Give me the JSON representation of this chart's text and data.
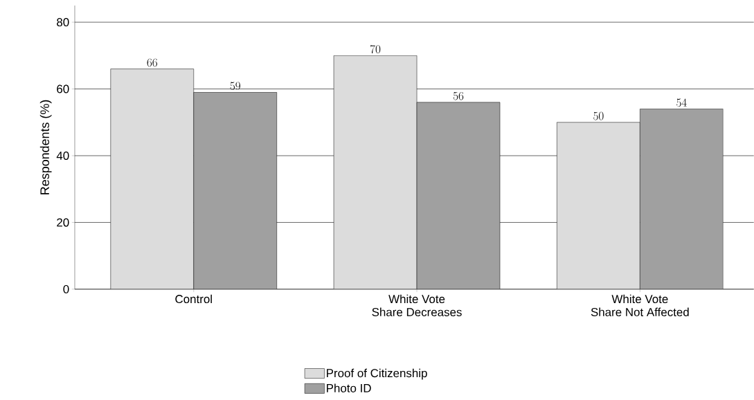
{
  "chart_data": {
    "type": "bar",
    "ylabel": "Respondents (%)",
    "categories": [
      "Control",
      "White Vote\nShare Decreases",
      "White Vote\nShare Not Affected"
    ],
    "series": [
      {
        "name": "Proof of Citizenship",
        "color": "#dcdcdc",
        "values": [
          66,
          70,
          50
        ]
      },
      {
        "name": "Photo ID",
        "color": "#a0a0a0",
        "values": [
          59,
          56,
          54
        ]
      }
    ],
    "ylim": [
      0,
      85
    ],
    "yticks": [
      0,
      20,
      40,
      60,
      80
    ],
    "grid": "y",
    "legend": "bottom",
    "data_labels": true
  }
}
